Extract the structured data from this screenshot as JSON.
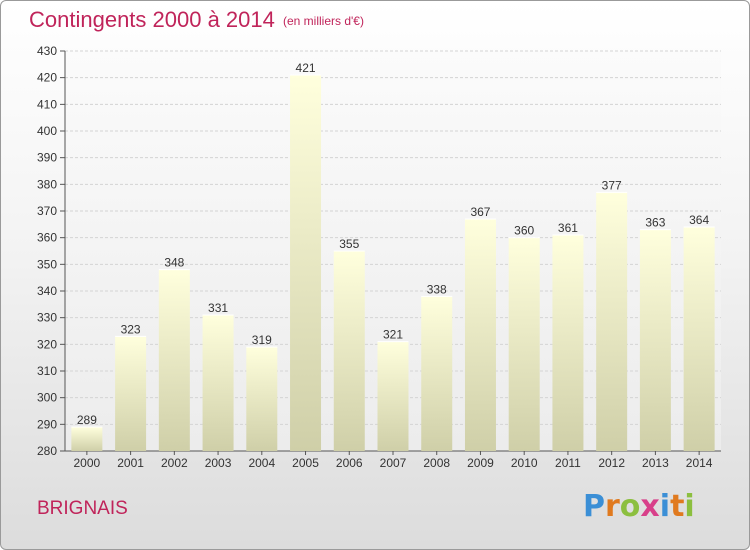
{
  "chart_data": {
    "type": "bar",
    "title": "Contingents 2000 à 2014",
    "subtitle": "(en milliers d'€)",
    "categories": [
      "2000",
      "2001",
      "2002",
      "2003",
      "2004",
      "2005",
      "2006",
      "2007",
      "2008",
      "2009",
      "2010",
      "2011",
      "2012",
      "2013",
      "2014"
    ],
    "values": [
      289,
      323,
      348,
      331,
      319,
      421,
      355,
      321,
      338,
      367,
      360,
      361,
      377,
      363,
      364
    ],
    "ylim": [
      280,
      430
    ],
    "yticks": [
      280,
      290,
      300,
      310,
      320,
      330,
      340,
      350,
      360,
      370,
      380,
      390,
      400,
      410,
      420,
      430
    ],
    "grid": true,
    "colors": {
      "bar_top": "#ffffdd",
      "bar_bottom": "#cfcfa8",
      "text_accent": "#c0245a"
    }
  },
  "footer": {
    "place": "BRIGNAIS",
    "logo": [
      "P",
      "r",
      "o",
      "x",
      "i",
      "t",
      "i"
    ],
    "logo_colors": [
      "#3b8fd6",
      "#e07a1f",
      "#8cbf3f",
      "#d8408a",
      "#3b8fd6",
      "#e07a1f",
      "#8cbf3f"
    ]
  }
}
